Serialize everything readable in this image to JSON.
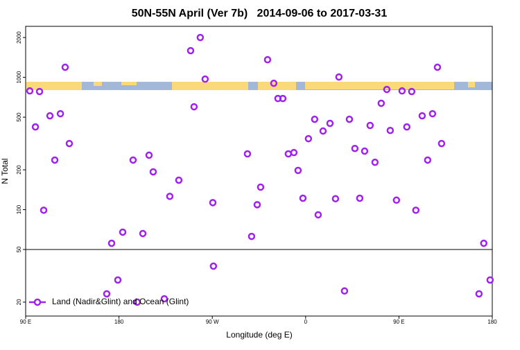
{
  "chart_data": {
    "type": "scatter",
    "title": "50N-55N April (Ver 7b)   2014-09-06 to 2017-03-31",
    "x_label": "Longitude (deg E)",
    "y_label": "N Total",
    "xlim": [
      90,
      540
    ],
    "xticks": [
      {
        "value": 90,
        "label": "90 E"
      },
      180,
      {
        "value": 270,
        "label": "90 W"
      },
      {
        "value": 360,
        "label": "0"
      },
      {
        "value": 450,
        "label": "90 E"
      },
      {
        "value": 540,
        "label": "180"
      }
    ],
    "ylim": [
      15.7,
      2430
    ],
    "log_y": true,
    "yticks": [
      20,
      50,
      100,
      200,
      500,
      1000,
      2000
    ],
    "reference_line": 50,
    "legend": "bottom-left",
    "series": [
      {
        "name": "Land (Nadir&Glint) and Ocean (Glint)",
        "color": "#a020f0",
        "x": [
          94,
          99.4,
          103.4,
          107.4,
          113.4,
          118.1,
          123.5,
          128.1,
          132.1,
          168.2,
          172.9,
          178.9,
          183.6,
          193.6,
          197.6,
          203,
          209,
          213,
          223.7,
          229,
          237.7,
          249.1,
          252.4,
          258.4,
          263.1,
          270.5,
          271.1,
          303.9,
          307.9,
          313.3,
          316.6,
          323.3,
          329.3,
          333.3,
          338,
          343.3,
          348.7,
          352.7,
          357.4,
          362.7,
          368.7,
          372.1,
          376.8,
          383.5,
          388.8,
          392.1,
          397.5,
          402.2,
          407.5,
          412.2,
          416.9,
          422.2,
          426.9,
          432.9,
          438.3,
          441.6,
          447.6,
          453,
          457.6,
          462.3,
          466.3,
          472.4,
          477.7,
          482.4,
          487.1,
          491.1,
          527.2,
          531.8,
          537.9
        ],
        "values": [
          790,
          422,
          781,
          99,
          512,
          237,
          531,
          1192,
          316,
          23.1,
          55.7,
          29.4,
          67.6,
          237,
          20,
          66,
          258,
          193,
          21.2,
          126,
          167,
          1591,
          599,
          2000,
          970,
          113,
          37.4,
          264,
          62.8,
          109,
          148,
          1359,
          902,
          692,
          692,
          264,
          270,
          198,
          122,
          344,
          482,
          91.4,
          393,
          449,
          121,
          1006,
          24.3,
          482,
          290,
          122,
          277,
          433,
          228,
          637,
          810,
          397,
          118,
          790,
          422,
          781,
          99,
          512,
          237,
          531,
          1192,
          316,
          23.1,
          55.7,
          29.4
        ]
      }
    ]
  }
}
